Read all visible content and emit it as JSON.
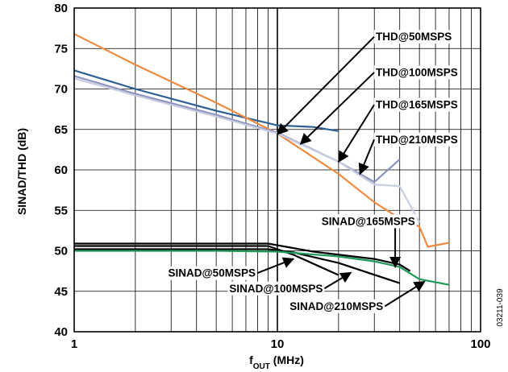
{
  "chart_data": {
    "type": "line",
    "xscale": "log",
    "xlim": [
      1,
      100
    ],
    "ylim": [
      40,
      80
    ],
    "xticks": [
      "1",
      "10",
      "100"
    ],
    "yticks": [
      "40",
      "45",
      "50",
      "55",
      "60",
      "65",
      "70",
      "75",
      "80"
    ],
    "xlabel_main": "f",
    "xlabel_sub": "OUT",
    "xlabel_rest": " (MHz)",
    "ylabel": "SINAD/THD (dB)",
    "grid": true,
    "figure_id": "03211-039",
    "series": [
      {
        "name": "THD@50MSPS",
        "color": "#2E5F93",
        "x": [
          1,
          2,
          5,
          10,
          15,
          20
        ],
        "y": [
          72.3,
          70.0,
          67.3,
          65.5,
          65.3,
          64.8
        ]
      },
      {
        "name": "THD@100MSPS",
        "color": "#F08A3E",
        "x": [
          1,
          2,
          5,
          10,
          20,
          30,
          40,
          50,
          55,
          70
        ],
        "y": [
          76.8,
          73.0,
          68.3,
          64.5,
          59.5,
          56.0,
          54.0,
          53.0,
          50.5,
          51.0
        ]
      },
      {
        "name": "THD@165MSPS",
        "color": "#8C93BE",
        "x": [
          1,
          2,
          5,
          10,
          20,
          30,
          40
        ],
        "y": [
          71.6,
          69.4,
          66.8,
          64.6,
          61.0,
          58.5,
          61.3
        ]
      },
      {
        "name": "THD@210MSPS",
        "color": "#C8CDE0",
        "x": [
          1,
          2,
          5,
          10,
          20,
          30,
          40,
          50
        ],
        "y": [
          71.3,
          69.2,
          66.6,
          64.5,
          61.0,
          58.2,
          58.0,
          53.5
        ]
      },
      {
        "name": "SINAD@50MSPS",
        "color": "#000000",
        "x": [
          1,
          2,
          5,
          9,
          12,
          20
        ],
        "y": [
          50.6,
          50.6,
          50.6,
          50.6,
          49.5,
          47.0
        ]
      },
      {
        "name": "SINAD@100MSPS",
        "color": "#000000",
        "x": [
          1,
          2,
          5,
          9,
          12,
          20,
          40
        ],
        "y": [
          50.2,
          50.2,
          50.2,
          50.2,
          49.8,
          48.5,
          46.0
        ]
      },
      {
        "name": "SINAD@165MSPS",
        "color": "#000000",
        "x": [
          1,
          2,
          5,
          9,
          15,
          30,
          40,
          45
        ],
        "y": [
          50.9,
          50.9,
          50.9,
          50.9,
          49.9,
          49.0,
          48.3,
          47.5
        ]
      },
      {
        "name": "SINAD@210MSPS",
        "color": "#1E9A5A",
        "x": [
          1,
          2,
          5,
          10,
          20,
          30,
          40,
          50,
          70
        ],
        "y": [
          50.0,
          50.0,
          50.0,
          49.9,
          49.3,
          48.7,
          48.0,
          46.5,
          45.8
        ]
      }
    ],
    "annotations": [
      {
        "text": "THD@50MSPS",
        "label_x": 30.5,
        "label_y": 76.0,
        "target_x": 10.0,
        "target_y": 64.4
      },
      {
        "text": "THD@100MSPS",
        "label_x": 30.5,
        "label_y": 71.6,
        "target_x": 13.0,
        "target_y": 63.2
      },
      {
        "text": "THD@165MSPS",
        "label_x": 30.5,
        "label_y": 67.6,
        "target_x": 20.0,
        "target_y": 61.0
      },
      {
        "text": "THD@210MSPS",
        "label_x": 30.5,
        "label_y": 63.3,
        "target_x": 25.5,
        "target_y": 59.5
      },
      {
        "text": "SINAD@165MSPS",
        "label_x": 16.5,
        "label_y": 53.2,
        "target_x": 38.0,
        "target_y": 48.0
      },
      {
        "text": "SINAD@50MSPS",
        "label_x": 2.9,
        "label_y": 46.8,
        "target_x": 12.0,
        "target_y": 49.0
      },
      {
        "text": "SINAD@100MSPS",
        "label_x": 5.8,
        "label_y": 44.9,
        "target_x": 23.0,
        "target_y": 47.3
      },
      {
        "text": "SINAD@210MSPS",
        "label_x": 11.5,
        "label_y": 42.7,
        "target_x": 53.0,
        "target_y": 46.2
      }
    ]
  }
}
